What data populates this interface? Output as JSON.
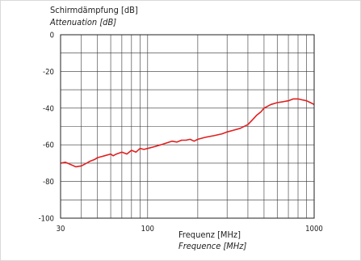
{
  "chart_data": {
    "type": "line",
    "title": "",
    "ylabel": "Schirmdämpfung [dB]",
    "ylabel_translation": "Attenuation [dB]",
    "xlabel": "Frequenz [MHz]",
    "xlabel_translation": "Frequence [MHz]",
    "x_scale": "log",
    "xlim": [
      30,
      1000
    ],
    "ylim": [
      -100,
      0
    ],
    "x_ticks": [
      30,
      100,
      1000
    ],
    "x_tick_labels": [
      "30",
      "100",
      "1000"
    ],
    "y_ticks": [
      0,
      -20,
      -40,
      -60,
      -80,
      -100
    ],
    "y_tick_labels": [
      "0",
      "-20",
      "-40",
      "-60",
      "-80",
      "-100"
    ],
    "grid": true,
    "series": [
      {
        "color": "#e02020",
        "x": [
          30,
          32,
          33,
          35,
          37,
          40,
          43,
          45,
          48,
          50,
          55,
          60,
          62,
          65,
          70,
          75,
          80,
          85,
          90,
          95,
          100,
          110,
          120,
          130,
          140,
          150,
          160,
          170,
          180,
          190,
          200,
          220,
          250,
          280,
          300,
          330,
          360,
          400,
          430,
          450,
          480,
          500,
          550,
          600,
          650,
          700,
          750,
          800,
          850,
          900,
          950,
          1000
        ],
        "y": [
          -70,
          -69.5,
          -70,
          -71,
          -72,
          -71.5,
          -70,
          -69,
          -68,
          -67,
          -66,
          -65,
          -66,
          -65,
          -64,
          -65,
          -63,
          -64,
          -62,
          -62.5,
          -62,
          -61,
          -60,
          -59,
          -58,
          -58.5,
          -57.5,
          -57.5,
          -57,
          -58,
          -57,
          -56,
          -55,
          -54,
          -53,
          -52,
          -51,
          -49,
          -46,
          -44,
          -42,
          -40,
          -38,
          -37,
          -36.5,
          -36,
          -35,
          -35,
          -35.5,
          -36,
          -37,
          -38
        ]
      }
    ]
  }
}
